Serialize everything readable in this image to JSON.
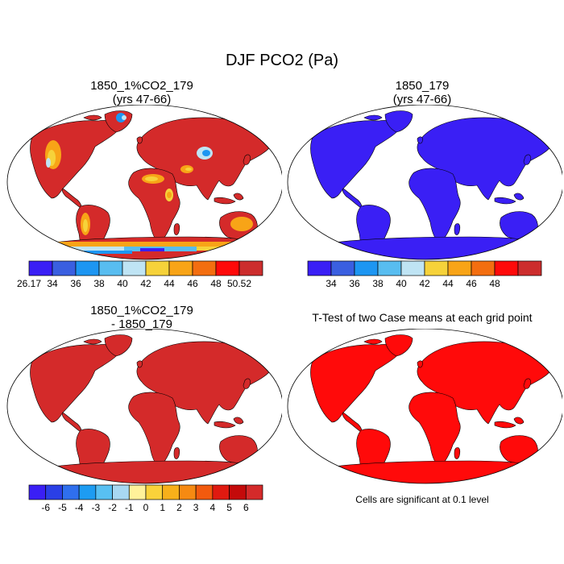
{
  "figure_title": "DJF PCO2 (Pa)",
  "panels": [
    {
      "id": "case1",
      "title_line1": "1850_1%CO2_179",
      "title_line2": "(yrs 47-66)",
      "fill_color": "#d42a2a",
      "colorbar": {
        "labels": [
          "26.17",
          "34",
          "36",
          "38",
          "40",
          "42",
          "44",
          "46",
          "48",
          "50.52"
        ],
        "colors": [
          "#3a1ff5",
          "#3a5fe0",
          "#1d96f2",
          "#58bdf0",
          "#bfe4f4",
          "#f6d23a",
          "#f8a417",
          "#f36e10",
          "#ff0a0a",
          "#cc2d2d"
        ]
      }
    },
    {
      "id": "case2",
      "title_line1": "1850_179",
      "title_line2": "(yrs 47-66)",
      "fill_color": "#3a1ff5",
      "colorbar": {
        "labels": [
          "34",
          "36",
          "38",
          "40",
          "42",
          "44",
          "46",
          "48"
        ],
        "colors": [
          "#3a1ff5",
          "#3a5fe0",
          "#1d96f2",
          "#58bdf0",
          "#bfe4f4",
          "#f6d23a",
          "#f8a417",
          "#f36e10",
          "#ff0a0a",
          "#cc2d2d"
        ]
      }
    },
    {
      "id": "diff",
      "title_line1": "1850_1%CO2_179",
      "title_line2": "- 1850_179",
      "fill_color": "#d42a2a",
      "colorbar": {
        "labels": [
          "-6",
          "-5",
          "-4",
          "-3",
          "-2",
          "-1",
          "0",
          "1",
          "2",
          "3",
          "4",
          "5",
          "6"
        ],
        "colors": [
          "#3a1ff5",
          "#2a3fe6",
          "#2f6fee",
          "#1d9cf2",
          "#58c0f2",
          "#a8d8f2",
          "#fff29a",
          "#fad23a",
          "#f8b01a",
          "#f68a12",
          "#f25a0e",
          "#e01a10",
          "#c40a0a",
          "#d42a2a"
        ]
      }
    },
    {
      "id": "ttest",
      "title_line1": "T-Test of two Case means at each grid point",
      "fill_color": "#ff0a0a",
      "note": "Cells are significant at 0.1 level"
    }
  ],
  "case1_regions": {
    "high": "#d42a2a",
    "mid": "#f8a417",
    "yellow": "#f6d23a",
    "light": "#bfe4f4",
    "cyan": "#58bdf0",
    "blue": "#1d96f2",
    "deep": "#3a1ff5"
  }
}
